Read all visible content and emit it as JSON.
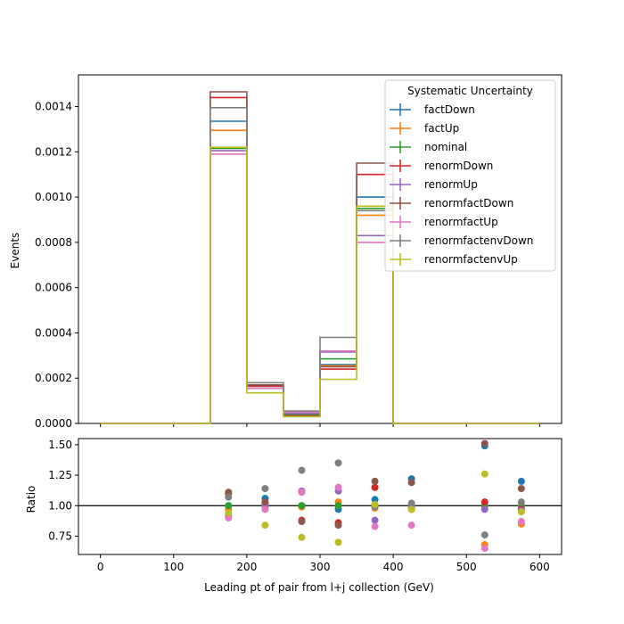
{
  "colors": {
    "factDown": "#1f77b4",
    "factUp": "#ff7f0e",
    "nominal": "#2ca02c",
    "renormDown": "#d62728",
    "renormUp": "#9467bd",
    "renormfactDown": "#8c564b",
    "renormfactUp": "#e377c2",
    "renormfactenvDown": "#7f7f7f",
    "renormfactenvUp": "#bcbd22"
  },
  "chart_data": [
    {
      "type": "line",
      "style": "step-histogram",
      "ylabel": "Events",
      "xlim": [
        -30,
        630
      ],
      "ylim": [
        0,
        0.00154
      ],
      "yticks": [
        "0.0000",
        "0.0002",
        "0.0004",
        "0.0006",
        "0.0008",
        "0.0010",
        "0.0012",
        "0.0014"
      ],
      "ytick_values": [
        0,
        0.0002,
        0.0004,
        0.0006,
        0.0008,
        0.001,
        0.0012,
        0.0014
      ],
      "bin_edges": [
        0,
        50,
        100,
        150,
        200,
        250,
        300,
        350,
        400,
        450,
        500,
        550,
        600
      ],
      "legend": {
        "title": "Systematic Uncertainty",
        "position": "upper right"
      },
      "series": [
        {
          "name": "factDown",
          "color_key": "factDown",
          "values": [
            0,
            0,
            0,
            0.001335,
            0.000165,
            4e-05,
            0.00026,
            0.001,
            0,
            0,
            0,
            0
          ]
        },
        {
          "name": "factUp",
          "color_key": "factUp",
          "values": [
            0,
            0,
            0,
            0.001295,
            0.000155,
            4.5e-05,
            0.000255,
            0.00092,
            0,
            0,
            0,
            0
          ]
        },
        {
          "name": "nominal",
          "color_key": "nominal",
          "values": [
            0,
            0,
            0,
            0.001215,
            0.000155,
            4e-05,
            0.000285,
            0.00095,
            0,
            0,
            0,
            0
          ]
        },
        {
          "name": "renormDown",
          "color_key": "renormDown",
          "values": [
            0,
            0,
            0,
            0.00144,
            0.000165,
            3.5e-05,
            0.00024,
            0.0011,
            0,
            0,
            0,
            0
          ]
        },
        {
          "name": "renormUp",
          "color_key": "renormUp",
          "values": [
            0,
            0,
            0,
            0.001205,
            0.000155,
            4.5e-05,
            0.000315,
            0.00083,
            0,
            0,
            0,
            0
          ]
        },
        {
          "name": "renormfactDown",
          "color_key": "renormfactDown",
          "values": [
            0,
            0,
            0,
            0.001465,
            0.00017,
            3.5e-05,
            0.00025,
            0.00115,
            0,
            0,
            0,
            0
          ]
        },
        {
          "name": "renormfactUp",
          "color_key": "renormfactUp",
          "values": [
            0,
            0,
            0,
            0.00119,
            0.000155,
            5e-05,
            0.00032,
            0.0008,
            0,
            0,
            0,
            0
          ]
        },
        {
          "name": "renormfactenvDown",
          "color_key": "renormfactenvDown",
          "values": [
            0,
            0,
            0,
            0.001395,
            0.00018,
            5.5e-05,
            0.00038,
            0.00094,
            0,
            0,
            0,
            0
          ]
        },
        {
          "name": "renormfactenvUp",
          "color_key": "renormfactenvUp",
          "values": [
            0,
            0,
            0,
            0.00122,
            0.000135,
            3e-05,
            0.000195,
            0.00096,
            0,
            0,
            0,
            0
          ]
        }
      ]
    },
    {
      "type": "scatter",
      "xlabel": "Leading pt of pair from l+j collection (GeV)",
      "ylabel": "Ratio",
      "xlim": [
        -30,
        630
      ],
      "ylim": [
        0.6,
        1.55
      ],
      "xticks": [
        "0",
        "100",
        "200",
        "300",
        "400",
        "500",
        "600"
      ],
      "xtick_values": [
        0,
        100,
        200,
        300,
        400,
        500,
        600
      ],
      "yticks": [
        "0.75",
        "1.00",
        "1.25",
        "1.50"
      ],
      "ytick_values": [
        0.75,
        1.0,
        1.25,
        1.5
      ],
      "reference_line": 1.0,
      "x": [
        175,
        225,
        275,
        325,
        375,
        425,
        525,
        575
      ],
      "series": [
        {
          "name": "factDown",
          "color_key": "factDown",
          "values": [
            1.0,
            1.06,
            1.0,
            0.97,
            1.05,
            1.22,
            1.49,
            1.2
          ]
        },
        {
          "name": "factUp",
          "color_key": "factUp",
          "values": [
            0.97,
            0.99,
            0.99,
            1.03,
            0.98,
            0.97,
            0.68,
            0.85
          ]
        },
        {
          "name": "nominal",
          "color_key": "nominal",
          "values": [
            1.0,
            1.0,
            1.0,
            1.0,
            1.0,
            1.0,
            1.0,
            1.0
          ]
        },
        {
          "name": "renormDown",
          "color_key": "renormDown",
          "values": [
            1.1,
            1.02,
            0.88,
            0.86,
            1.15,
            0.98,
            1.03,
            0.97
          ]
        },
        {
          "name": "renormUp",
          "color_key": "renormUp",
          "values": [
            0.92,
            1.0,
            1.12,
            1.12,
            0.88,
            1.0,
            0.97,
            0.96
          ]
        },
        {
          "name": "renormfactDown",
          "color_key": "renormfactDown",
          "values": [
            1.11,
            1.03,
            0.87,
            0.84,
            1.2,
            1.19,
            1.51,
            1.14
          ]
        },
        {
          "name": "renormfactUp",
          "color_key": "renormfactUp",
          "values": [
            0.9,
            0.97,
            1.11,
            1.15,
            0.83,
            0.84,
            0.65,
            0.87
          ]
        },
        {
          "name": "renormfactenvDown",
          "color_key": "renormfactenvDown",
          "values": [
            1.07,
            1.14,
            1.29,
            1.35,
            0.99,
            1.02,
            0.76,
            1.03
          ]
        },
        {
          "name": "renormfactenvUp",
          "color_key": "renormfactenvUp",
          "values": [
            0.94,
            0.84,
            0.74,
            0.7,
            1.01,
            0.97,
            1.26,
            0.95
          ]
        }
      ]
    }
  ]
}
